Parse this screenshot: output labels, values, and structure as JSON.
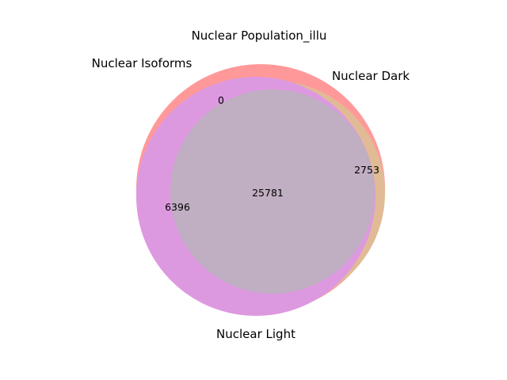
{
  "title": "Nuclear Population_illu",
  "sets": [
    {
      "key": "isoforms",
      "label": "Nuclear Isoforms",
      "color": "#ff9999"
    },
    {
      "key": "dark",
      "label": "Nuclear Dark",
      "color": "#e1bb95"
    },
    {
      "key": "light",
      "label": "Nuclear Light",
      "color": "#dd99e0"
    }
  ],
  "overlap_color": "#c0aec2",
  "regions": [
    {
      "key": "top_sliver",
      "value": "0"
    },
    {
      "key": "right_crescent",
      "value": "2753"
    },
    {
      "key": "left_crescent",
      "value": "6396"
    },
    {
      "key": "center",
      "value": "25781"
    }
  ]
}
